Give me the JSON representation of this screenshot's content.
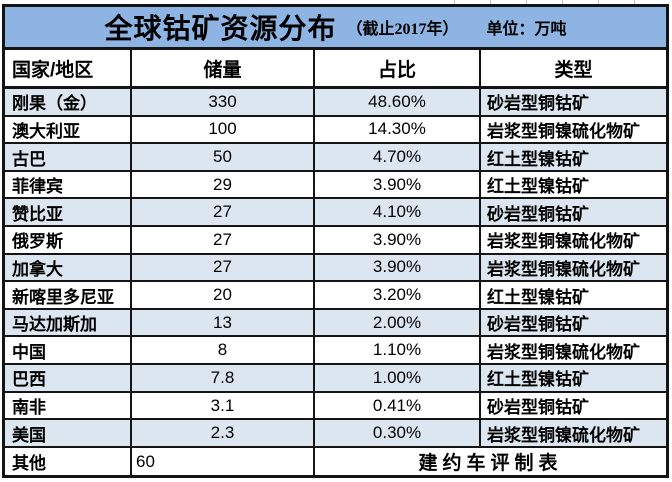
{
  "title": {
    "main": "全球钴矿资源分布",
    "note": "（截止2017年）",
    "unit": "单位：万吨"
  },
  "chart_data": {
    "type": "table",
    "title": "全球钴矿资源分布",
    "subtitle": "（截止2017年）",
    "unit_label": "单位：万吨",
    "columns": [
      "国家/地区",
      "储量",
      "占比",
      "类型"
    ],
    "rows": [
      [
        "刚果（金）",
        "330",
        "48.60%",
        "砂岩型铜钴矿"
      ],
      [
        "澳大利亚",
        "100",
        "14.30%",
        "岩浆型铜镍硫化物矿"
      ],
      [
        "古巴",
        "50",
        "4.70%",
        "红土型镍钴矿"
      ],
      [
        "菲律宾",
        "29",
        "3.90%",
        "红土型镍钴矿"
      ],
      [
        "赞比亚",
        "27",
        "4.10%",
        "砂岩型铜钴矿"
      ],
      [
        "俄罗斯",
        "27",
        "3.90%",
        "岩浆型铜镍硫化物矿"
      ],
      [
        "加拿大",
        "27",
        "3.90%",
        "岩浆型铜镍硫化物矿"
      ],
      [
        "新喀里多尼亚",
        "20",
        "3.20%",
        "红土型镍钴矿"
      ],
      [
        "马达加斯加",
        "13",
        "2.00%",
        "砂岩型铜钴矿"
      ],
      [
        "中国",
        "8",
        "1.10%",
        "岩浆型铜镍硫化物矿"
      ],
      [
        "巴西",
        "7.8",
        "1.00%",
        "红土型镍钴矿"
      ],
      [
        "南非",
        "3.1",
        "0.41%",
        "砂岩型铜钴矿"
      ],
      [
        "美国",
        "2.3",
        "0.30%",
        "岩浆型铜镍硫化物矿"
      ]
    ],
    "footer_row": {
      "country": "其他",
      "reserves": "60",
      "credit": "建约车评制表"
    }
  },
  "colors": {
    "title_bg": "#8db4e2",
    "row_alt_bg": "#dce6f1",
    "border": "#141414"
  }
}
